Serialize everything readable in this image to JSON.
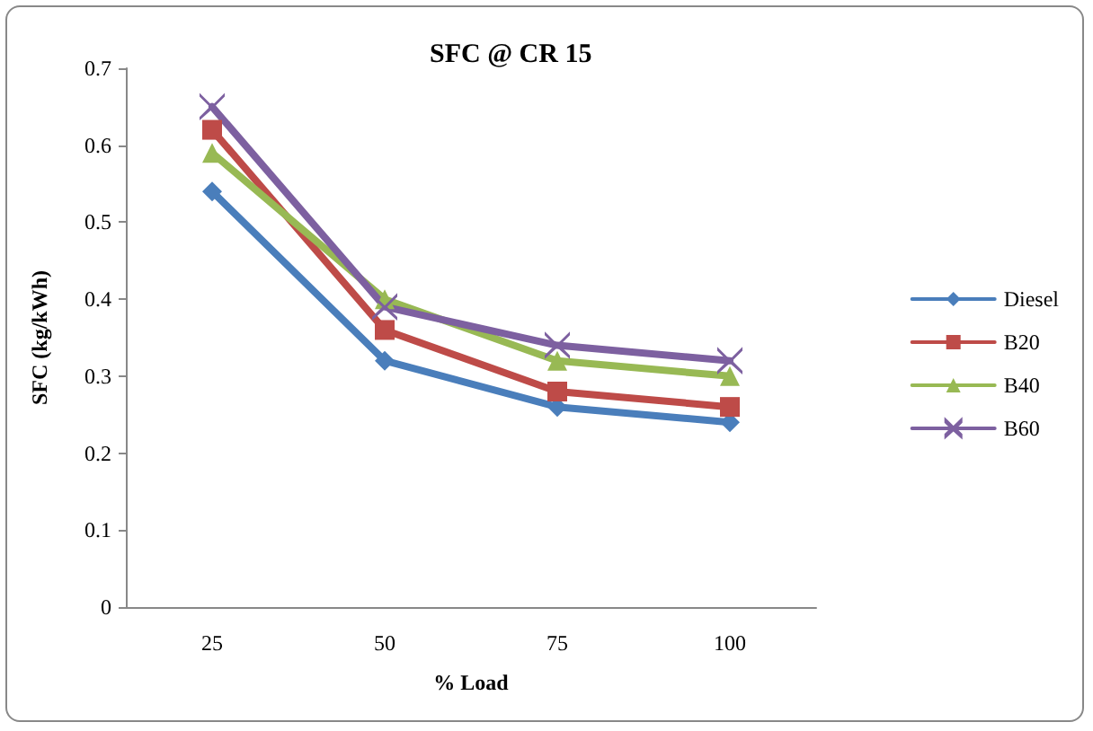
{
  "chart_data": {
    "type": "line",
    "title": "SFC @ CR 15",
    "xlabel": "% Load",
    "ylabel": "SFC (kg/kWh)",
    "categories": [
      "25",
      "50",
      "75",
      "100"
    ],
    "series": [
      {
        "name": "Diesel",
        "color": "#4a7ebb",
        "marker": "diamond",
        "values": [
          0.54,
          0.32,
          0.26,
          0.24
        ]
      },
      {
        "name": "B20",
        "color": "#be4b48",
        "marker": "square",
        "values": [
          0.62,
          0.36,
          0.28,
          0.26
        ]
      },
      {
        "name": "B40",
        "color": "#98b954",
        "marker": "triangle",
        "values": [
          0.59,
          0.4,
          0.32,
          0.3
        ]
      },
      {
        "name": "B60",
        "color": "#7d60a0",
        "marker": "cross",
        "values": [
          0.65,
          0.39,
          0.34,
          0.32
        ]
      }
    ],
    "ylim": [
      0,
      0.7
    ],
    "yticks": [
      0,
      0.1,
      0.2,
      0.3,
      0.4,
      0.5,
      0.6,
      0.7
    ],
    "grid": false,
    "legend": "right",
    "line_style": "solid"
  }
}
